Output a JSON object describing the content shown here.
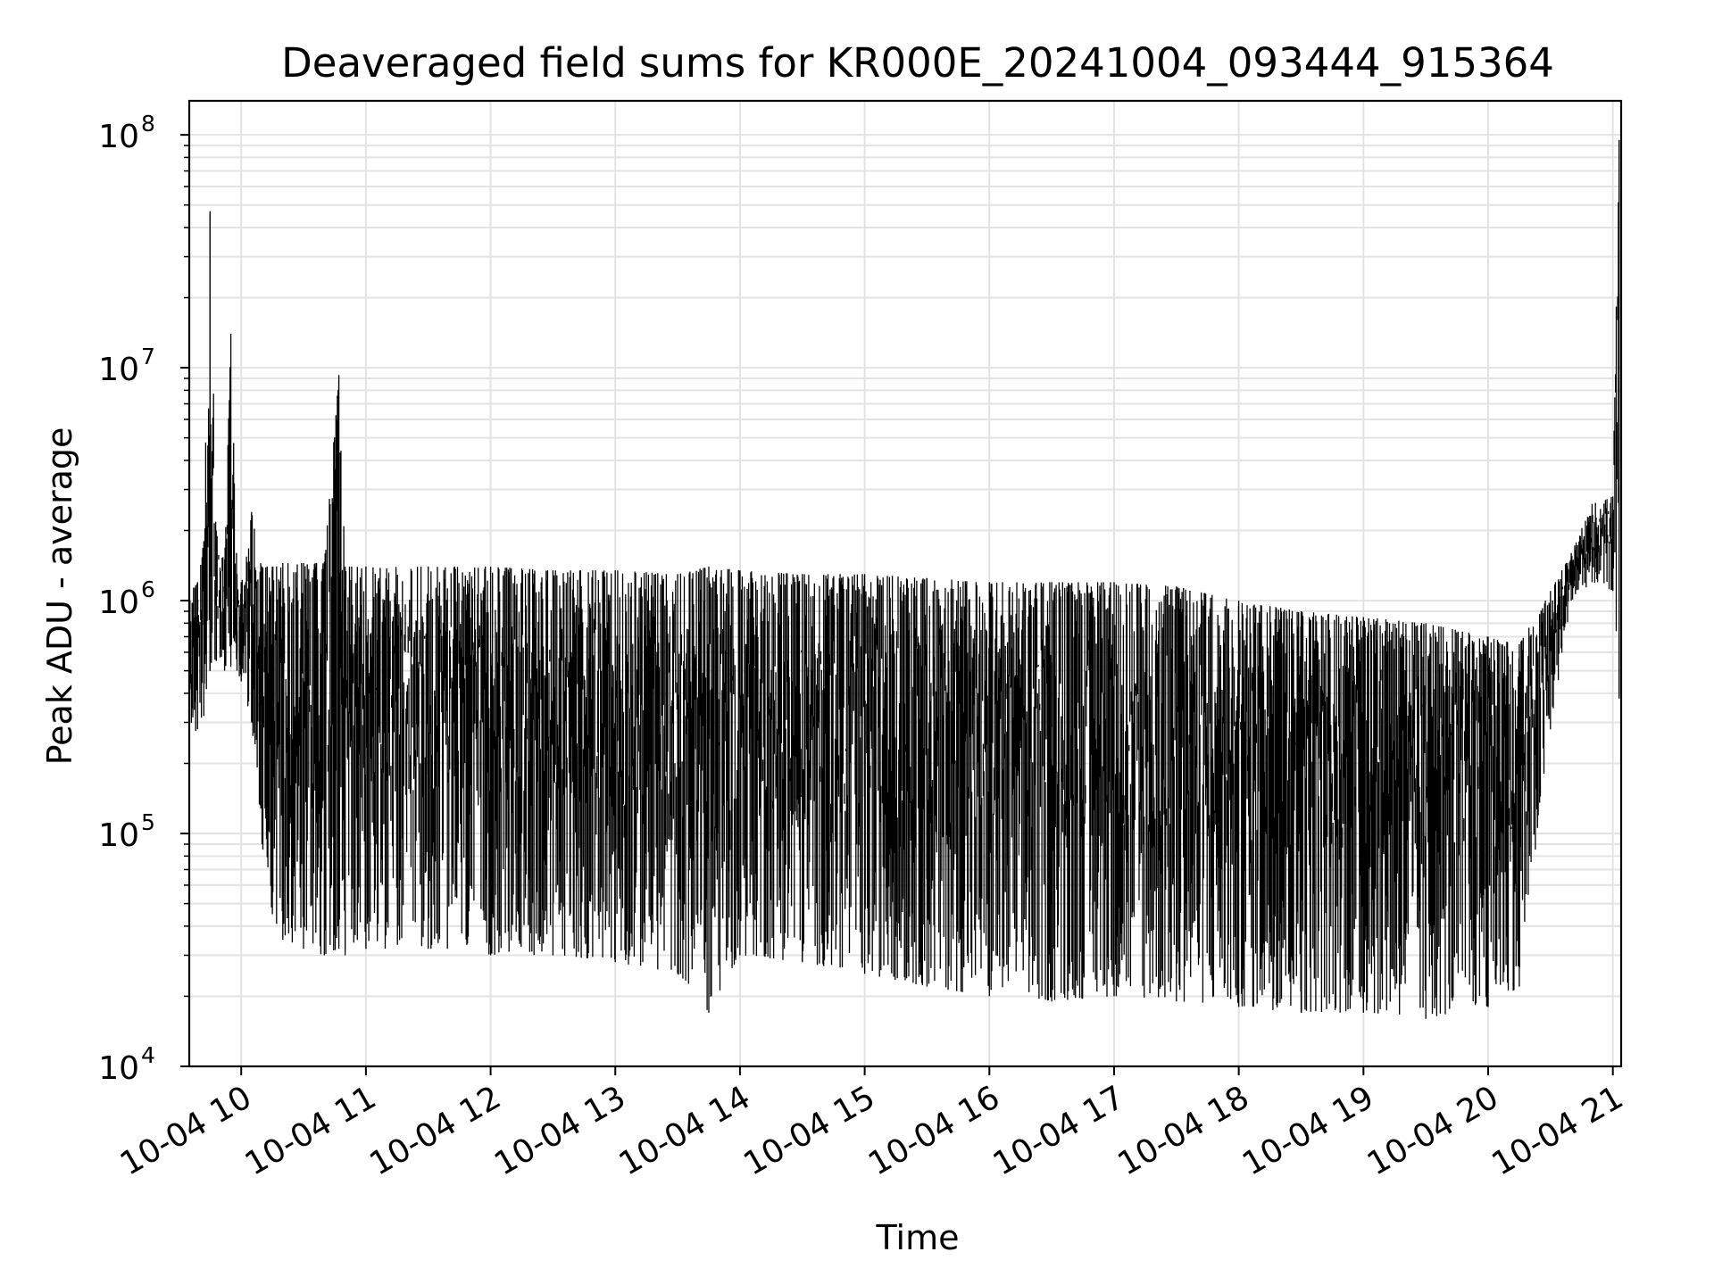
{
  "chart_data": {
    "type": "line",
    "title": "Deaveraged field sums for KR000E_20241004_093444_915364",
    "xlabel": "Time",
    "ylabel": "Peak ADU - average",
    "x_scale": "time",
    "y_scale": "log",
    "xlim": [
      "10-04 09:35",
      "10-04 21:04"
    ],
    "ylim": [
      10000,
      140000000
    ],
    "grid": true,
    "legend": "none",
    "x_ticks": [
      "10-04 10",
      "10-04 11",
      "10-04 12",
      "10-04 13",
      "10-04 14",
      "10-04 15",
      "10-04 16",
      "10-04 17",
      "10-04 18",
      "10-04 19",
      "10-04 20",
      "10-04 21"
    ],
    "y_ticks": [
      {
        "value": 10000,
        "base": "10",
        "exp": "4"
      },
      {
        "value": 100000,
        "base": "10",
        "exp": "5"
      },
      {
        "value": 1000000,
        "base": "10",
        "exp": "6"
      },
      {
        "value": 10000000,
        "base": "10",
        "exp": "7"
      },
      {
        "value": 100000000,
        "base": "10",
        "exp": "8"
      }
    ],
    "line_color": "#000000",
    "series": [
      {
        "x": [
          "10-04 09:35",
          "10-04 09:39",
          "10-04 09:42",
          "10-04 09:45",
          "10-04 09:48",
          "10-04 09:52",
          "10-04 09:55",
          "10-04 09:58",
          "10-04 10:00",
          "10-04 10:05",
          "10-04 10:10",
          "10-04 10:15",
          "10-04 10:20",
          "10-04 10:30",
          "10-04 10:40",
          "10-04 10:47",
          "10-04 10:50",
          "10-04 11:00",
          "10-04 11:30",
          "10-04 12:00",
          "10-04 12:30",
          "10-04 13:00",
          "10-04 13:30",
          "10-04 13:45",
          "10-04 14:00",
          "10-04 14:30",
          "10-04 15:00",
          "10-04 15:30",
          "10-04 16:00",
          "10-04 16:30",
          "10-04 17:00",
          "10-04 17:30",
          "10-04 18:00",
          "10-04 18:30",
          "10-04 19:00",
          "10-04 19:30",
          "10-04 20:00",
          "10-04 20:15",
          "10-04 20:30",
          "10-04 20:40",
          "10-04 20:50",
          "10-04 21:00",
          "10-04 21:03"
        ],
        "upper": [
          1100000,
          1200000,
          1800000,
          47000000,
          2000000,
          1500000,
          14000000,
          1300000,
          1200000,
          2400000,
          1400000,
          1400000,
          1450000,
          1450000,
          1450000,
          9300000,
          1400000,
          1400000,
          1400000,
          1400000,
          1350000,
          1350000,
          1300000,
          1400000,
          1350000,
          1300000,
          1300000,
          1250000,
          1200000,
          1200000,
          1200000,
          1150000,
          1000000,
          900000,
          850000,
          800000,
          700000,
          650000,
          1100000,
          1600000,
          2600000,
          2800000,
          95000000
        ],
        "lower": [
          250000,
          280000,
          320000,
          500000,
          550000,
          500000,
          520000,
          500000,
          450000,
          300000,
          90000,
          45000,
          35000,
          32000,
          30000,
          32000,
          30000,
          32000,
          32000,
          30000,
          30000,
          28000,
          25000,
          17000,
          30000,
          28000,
          25000,
          22000,
          20000,
          19000,
          20000,
          19000,
          18000,
          17000,
          17000,
          16000,
          18000,
          22000,
          280000,
          1000000,
          1200000,
          1100000,
          380000
        ]
      }
    ]
  }
}
